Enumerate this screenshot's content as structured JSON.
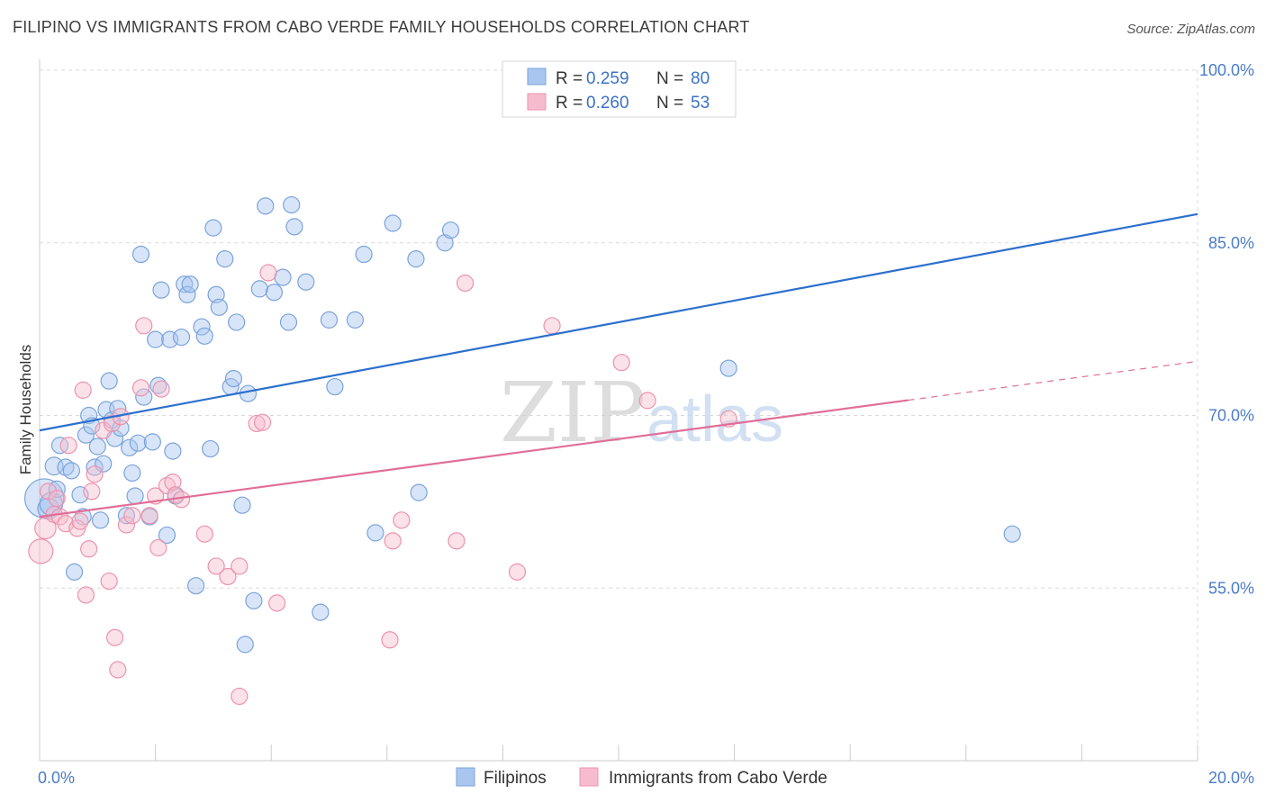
{
  "title": "FILIPINO VS IMMIGRANTS FROM CABO VERDE FAMILY HOUSEHOLDS CORRELATION CHART",
  "source": "Source: ZipAtlas.com",
  "watermark": {
    "zip": "ZIP",
    "atlas": "atlas"
  },
  "colors": {
    "blue_fill": "#a9c6ef",
    "blue_stroke": "#7aa3dc",
    "blue_line": "#2c6fcd",
    "pink_fill": "#f6bccd",
    "pink_stroke": "#ec93af",
    "pink_line": "#e06e98",
    "grid": "#d9d9d9",
    "tick_text": "#4a7cc9"
  },
  "legend": {
    "r_label": "R =",
    "n_label": "N =",
    "items": [
      {
        "r": "0.259",
        "n": "80"
      },
      {
        "r": "0.260",
        "n": "53"
      }
    ]
  },
  "chart_data": {
    "type": "scatter",
    "title": "FILIPINO VS IMMIGRANTS FROM CABO VERDE FAMILY HOUSEHOLDS CORRELATION CHART",
    "xlabel": "",
    "ylabel": "Family Households",
    "xlim": [
      0,
      20
    ],
    "ylim": [
      40,
      100
    ],
    "x_tick_labels": [
      "0.0%",
      "20.0%"
    ],
    "y_ticks": [
      55,
      70,
      85,
      100
    ],
    "y_tick_labels": [
      "55.0%",
      "70.0%",
      "85.0%",
      "100.0%"
    ],
    "grid": true,
    "legend_position": "top-center",
    "series": [
      {
        "name": "Filipinos",
        "color": "#a9c6ef",
        "trend": {
          "x0": 0,
          "y0": 68.7,
          "x1": 20,
          "y1": 87.5,
          "dashed_from": null
        },
        "points": [
          [
            0.08,
            62.8,
            2.4
          ],
          [
            0.15,
            61.9,
            1.3
          ],
          [
            0.2,
            62.3,
            1.4
          ],
          [
            0.25,
            65.6,
            1.1
          ],
          [
            0.3,
            63.6,
            1.0
          ],
          [
            0.35,
            67.4,
            1.0
          ],
          [
            0.45,
            65.5,
            1.0
          ],
          [
            0.55,
            65.2,
            1.0
          ],
          [
            0.6,
            56.4,
            1.0
          ],
          [
            0.7,
            63.1,
            1.0
          ],
          [
            0.75,
            61.2,
            1.0
          ],
          [
            0.8,
            68.3,
            1.0
          ],
          [
            0.85,
            70.0,
            1.0
          ],
          [
            0.9,
            69.1,
            1.0
          ],
          [
            0.95,
            65.5,
            1.0
          ],
          [
            1.0,
            67.3,
            1.0
          ],
          [
            1.05,
            60.9,
            1.0
          ],
          [
            1.1,
            65.8,
            1.0
          ],
          [
            1.15,
            70.5,
            1.0
          ],
          [
            1.2,
            73.0,
            1.0
          ],
          [
            1.25,
            69.6,
            1.0
          ],
          [
            1.3,
            68.0,
            1.0
          ],
          [
            1.35,
            70.6,
            1.0
          ],
          [
            1.4,
            68.9,
            1.0
          ],
          [
            1.5,
            61.3,
            1.0
          ],
          [
            1.55,
            67.2,
            1.0
          ],
          [
            1.6,
            65.0,
            1.0
          ],
          [
            1.65,
            63.0,
            1.0
          ],
          [
            1.7,
            67.6,
            1.0
          ],
          [
            1.75,
            84.0,
            1.0
          ],
          [
            1.8,
            71.6,
            1.0
          ],
          [
            1.9,
            61.2,
            1.0
          ],
          [
            1.95,
            67.7,
            1.0
          ],
          [
            2.0,
            76.6,
            1.0
          ],
          [
            2.05,
            72.6,
            1.0
          ],
          [
            2.1,
            80.9,
            1.0
          ],
          [
            2.2,
            59.6,
            1.0
          ],
          [
            2.25,
            76.6,
            1.0
          ],
          [
            2.3,
            66.9,
            1.0
          ],
          [
            2.35,
            63.0,
            1.0
          ],
          [
            2.45,
            76.8,
            1.0
          ],
          [
            2.5,
            81.4,
            1.0
          ],
          [
            2.55,
            80.5,
            1.0
          ],
          [
            2.6,
            81.4,
            1.0
          ],
          [
            2.7,
            55.2,
            1.0
          ],
          [
            2.8,
            77.7,
            1.0
          ],
          [
            2.85,
            76.9,
            1.0
          ],
          [
            2.95,
            67.1,
            1.0
          ],
          [
            3.0,
            86.3,
            1.0
          ],
          [
            3.05,
            80.5,
            1.0
          ],
          [
            3.1,
            79.4,
            1.0
          ],
          [
            3.2,
            83.6,
            1.0
          ],
          [
            3.3,
            72.5,
            1.0
          ],
          [
            3.35,
            73.2,
            1.0
          ],
          [
            3.4,
            78.1,
            1.0
          ],
          [
            3.5,
            62.2,
            1.0
          ],
          [
            3.55,
            50.1,
            1.0
          ],
          [
            3.6,
            71.9,
            1.0
          ],
          [
            3.7,
            53.9,
            1.0
          ],
          [
            3.8,
            81.0,
            1.0
          ],
          [
            3.9,
            88.2,
            1.0
          ],
          [
            4.05,
            80.7,
            1.0
          ],
          [
            4.2,
            82.0,
            1.0
          ],
          [
            4.3,
            78.1,
            1.0
          ],
          [
            4.35,
            88.3,
            1.0
          ],
          [
            4.4,
            86.4,
            1.0
          ],
          [
            4.6,
            81.6,
            1.0
          ],
          [
            4.85,
            52.9,
            1.0
          ],
          [
            5.0,
            78.3,
            1.0
          ],
          [
            5.1,
            72.5,
            1.0
          ],
          [
            5.45,
            78.3,
            1.0
          ],
          [
            5.6,
            84.0,
            1.0
          ],
          [
            5.8,
            59.8,
            1.0
          ],
          [
            6.1,
            86.7,
            1.0
          ],
          [
            6.5,
            83.6,
            1.0
          ],
          [
            6.55,
            63.3,
            1.0
          ],
          [
            7.0,
            85.0,
            1.0
          ],
          [
            7.1,
            86.1,
            1.0
          ],
          [
            11.9,
            74.1,
            1.0
          ],
          [
            16.8,
            59.7,
            1.0
          ]
        ]
      },
      {
        "name": "Immigrants from Cabo Verde",
        "color": "#f6bccd",
        "trend": {
          "x0": 0,
          "y0": 61.2,
          "x1": 20,
          "y1": 74.7,
          "dashed_from": 15
        },
        "points": [
          [
            0.02,
            58.2,
            1.5
          ],
          [
            0.1,
            60.2,
            1.3
          ],
          [
            0.15,
            63.4,
            1.0
          ],
          [
            0.25,
            61.4,
            1.0
          ],
          [
            0.3,
            62.8,
            1.0
          ],
          [
            0.35,
            61.2,
            1.0
          ],
          [
            0.45,
            60.6,
            1.0
          ],
          [
            0.5,
            67.4,
            1.0
          ],
          [
            0.65,
            60.2,
            1.0
          ],
          [
            0.7,
            60.8,
            1.0
          ],
          [
            0.75,
            72.2,
            1.0
          ],
          [
            0.8,
            54.4,
            1.0
          ],
          [
            0.85,
            58.4,
            1.0
          ],
          [
            0.9,
            63.4,
            1.0
          ],
          [
            0.95,
            64.9,
            1.0
          ],
          [
            1.1,
            68.7,
            1.0
          ],
          [
            1.2,
            55.6,
            1.0
          ],
          [
            1.25,
            69.3,
            1.0
          ],
          [
            1.3,
            50.7,
            1.0
          ],
          [
            1.35,
            47.9,
            1.0
          ],
          [
            1.4,
            69.9,
            1.0
          ],
          [
            1.5,
            60.5,
            1.0
          ],
          [
            1.6,
            61.3,
            1.0
          ],
          [
            1.75,
            72.4,
            1.0
          ],
          [
            1.8,
            77.8,
            1.0
          ],
          [
            1.9,
            61.3,
            1.0
          ],
          [
            2.0,
            63.0,
            1.0
          ],
          [
            2.05,
            58.5,
            1.0
          ],
          [
            2.1,
            72.3,
            1.0
          ],
          [
            2.2,
            63.9,
            1.0
          ],
          [
            2.3,
            64.2,
            1.0
          ],
          [
            2.35,
            63.1,
            1.0
          ],
          [
            2.45,
            62.7,
            1.0
          ],
          [
            2.85,
            59.7,
            1.0
          ],
          [
            3.05,
            56.9,
            1.0
          ],
          [
            3.25,
            56.0,
            1.0
          ],
          [
            3.45,
            45.6,
            1.0
          ],
          [
            3.45,
            56.9,
            1.0
          ],
          [
            3.75,
            69.3,
            1.0
          ],
          [
            3.85,
            69.4,
            1.0
          ],
          [
            3.95,
            82.4,
            1.0
          ],
          [
            4.1,
            53.7,
            1.0
          ],
          [
            6.05,
            50.5,
            1.0
          ],
          [
            6.1,
            59.1,
            1.0
          ],
          [
            6.25,
            60.9,
            1.0
          ],
          [
            7.2,
            59.1,
            1.0
          ],
          [
            7.35,
            81.5,
            1.0
          ],
          [
            8.25,
            56.4,
            1.0
          ],
          [
            8.85,
            77.8,
            1.0
          ],
          [
            10.05,
            74.6,
            1.0
          ],
          [
            10.5,
            71.3,
            1.0
          ],
          [
            11.9,
            69.7,
            1.0
          ],
          [
            8.2,
            56.6,
            0.0
          ]
        ]
      }
    ]
  }
}
